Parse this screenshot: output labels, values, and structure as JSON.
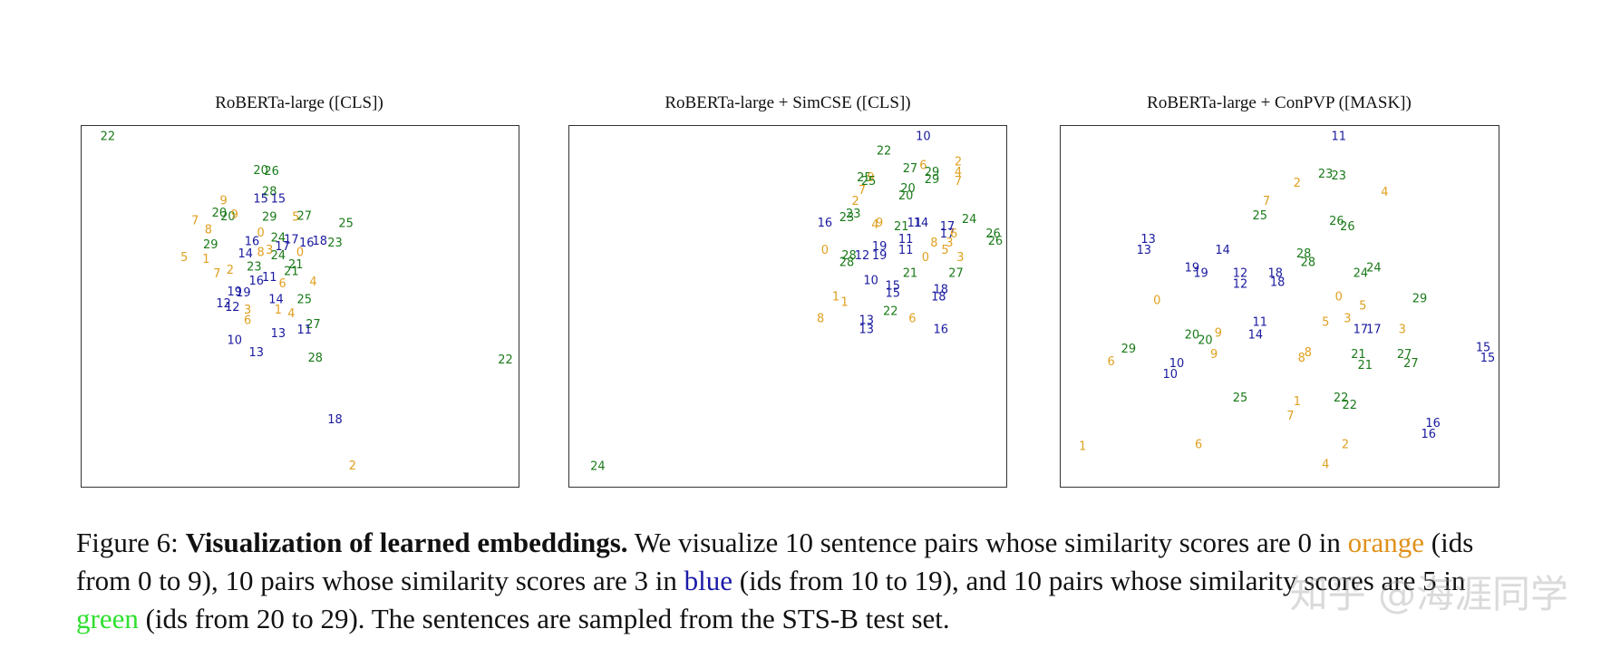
{
  "colors": {
    "orange": "#e0a020",
    "blue": "#1a1aa0",
    "green": "#1a7a1a",
    "caption_green": "#2ee02e"
  },
  "chart_data": [
    {
      "type": "scatter",
      "title": "RoBERTa-large ([CLS])",
      "xlim": [
        0,
        100
      ],
      "ylim": [
        0,
        100
      ],
      "grid": false,
      "points": [
        {
          "id": "22",
          "x": 6.0,
          "y": 97.0
        },
        {
          "id": "20",
          "x": 41.0,
          "y": 87.5
        },
        {
          "id": "26",
          "x": 43.5,
          "y": 87.3
        },
        {
          "id": "28",
          "x": 43.0,
          "y": 81.6
        },
        {
          "id": "15",
          "x": 41.0,
          "y": 79.7
        },
        {
          "id": "15",
          "x": 45.0,
          "y": 79.7
        },
        {
          "id": "9",
          "x": 32.5,
          "y": 79.2
        },
        {
          "id": "20",
          "x": 31.5,
          "y": 75.7
        },
        {
          "id": "20",
          "x": 33.5,
          "y": 74.8
        },
        {
          "id": "9",
          "x": 35.0,
          "y": 75.3
        },
        {
          "id": "7",
          "x": 26.0,
          "y": 73.6
        },
        {
          "id": "29",
          "x": 43.0,
          "y": 74.6
        },
        {
          "id": "5",
          "x": 49.0,
          "y": 74.6
        },
        {
          "id": "27",
          "x": 51.0,
          "y": 74.9
        },
        {
          "id": "25",
          "x": 60.5,
          "y": 72.9
        },
        {
          "id": "8",
          "x": 29.0,
          "y": 71.1
        },
        {
          "id": "0",
          "x": 41.0,
          "y": 70.2
        },
        {
          "id": "16",
          "x": 39.0,
          "y": 67.9
        },
        {
          "id": "24",
          "x": 45.0,
          "y": 68.9
        },
        {
          "id": "17",
          "x": 48.0,
          "y": 68.3
        },
        {
          "id": "17",
          "x": 46.0,
          "y": 66.4
        },
        {
          "id": "16",
          "x": 51.5,
          "y": 67.4
        },
        {
          "id": "18",
          "x": 54.5,
          "y": 68.0
        },
        {
          "id": "23",
          "x": 58.0,
          "y": 67.4
        },
        {
          "id": "29",
          "x": 29.5,
          "y": 67.0
        },
        {
          "id": "14",
          "x": 37.5,
          "y": 64.4
        },
        {
          "id": "8",
          "x": 41.0,
          "y": 64.8
        },
        {
          "id": "3",
          "x": 43.0,
          "y": 65.4
        },
        {
          "id": "24",
          "x": 45.0,
          "y": 63.9
        },
        {
          "id": "0",
          "x": 50.0,
          "y": 64.8
        },
        {
          "id": "5",
          "x": 23.5,
          "y": 63.5
        },
        {
          "id": "1",
          "x": 28.5,
          "y": 62.9
        },
        {
          "id": "23",
          "x": 39.5,
          "y": 60.8
        },
        {
          "id": "21",
          "x": 49.0,
          "y": 61.4
        },
        {
          "id": "21",
          "x": 48.0,
          "y": 59.5
        },
        {
          "id": "7",
          "x": 31.0,
          "y": 58.9
        },
        {
          "id": "2",
          "x": 34.0,
          "y": 59.9
        },
        {
          "id": "11",
          "x": 43.0,
          "y": 57.9
        },
        {
          "id": "16",
          "x": 40.0,
          "y": 56.9
        },
        {
          "id": "6",
          "x": 46.0,
          "y": 56.2
        },
        {
          "id": "4",
          "x": 53.0,
          "y": 56.6
        },
        {
          "id": "19",
          "x": 35.0,
          "y": 53.9
        },
        {
          "id": "19",
          "x": 37.0,
          "y": 53.7
        },
        {
          "id": "14",
          "x": 44.5,
          "y": 51.7
        },
        {
          "id": "25",
          "x": 51.0,
          "y": 51.7
        },
        {
          "id": "12",
          "x": 32.5,
          "y": 50.6
        },
        {
          "id": "12",
          "x": 34.5,
          "y": 49.6
        },
        {
          "id": "3",
          "x": 38.0,
          "y": 48.9
        },
        {
          "id": "1",
          "x": 45.0,
          "y": 48.9
        },
        {
          "id": "4",
          "x": 48.0,
          "y": 47.9
        },
        {
          "id": "6",
          "x": 38.0,
          "y": 46.0
        },
        {
          "id": "27",
          "x": 53.0,
          "y": 44.8
        },
        {
          "id": "11",
          "x": 51.0,
          "y": 43.3
        },
        {
          "id": "13",
          "x": 45.0,
          "y": 42.3
        },
        {
          "id": "10",
          "x": 35.0,
          "y": 40.4
        },
        {
          "id": "13",
          "x": 40.0,
          "y": 37.1
        },
        {
          "id": "28",
          "x": 53.5,
          "y": 35.5
        },
        {
          "id": "22",
          "x": 97.0,
          "y": 35.0
        },
        {
          "id": "18",
          "x": 58.0,
          "y": 18.5
        },
        {
          "id": "2",
          "x": 62.0,
          "y": 5.6
        }
      ]
    },
    {
      "type": "scatter",
      "title": "RoBERTa-large + SimCSE ([CLS])",
      "xlim": [
        0,
        100
      ],
      "ylim": [
        0,
        100
      ],
      "grid": false,
      "points": [
        {
          "id": "10",
          "x": 81.0,
          "y": 97.0
        },
        {
          "id": "22",
          "x": 72.0,
          "y": 93.0
        },
        {
          "id": "2",
          "x": 89.0,
          "y": 90.0
        },
        {
          "id": "27",
          "x": 78.0,
          "y": 88.0
        },
        {
          "id": "6",
          "x": 81.0,
          "y": 89.0
        },
        {
          "id": "29",
          "x": 83.0,
          "y": 87.0
        },
        {
          "id": "4",
          "x": 89.0,
          "y": 87.0
        },
        {
          "id": "7",
          "x": 89.0,
          "y": 84.5
        },
        {
          "id": "25",
          "x": 67.5,
          "y": 85.5
        },
        {
          "id": "9",
          "x": 69.0,
          "y": 85.5
        },
        {
          "id": "25",
          "x": 68.5,
          "y": 84.5
        },
        {
          "id": "29",
          "x": 83.0,
          "y": 85.0
        },
        {
          "id": "20",
          "x": 77.5,
          "y": 82.5
        },
        {
          "id": "7",
          "x": 67.0,
          "y": 82.0
        },
        {
          "id": "20",
          "x": 77.0,
          "y": 80.5
        },
        {
          "id": "2",
          "x": 65.5,
          "y": 79.0
        },
        {
          "id": "23",
          "x": 65.0,
          "y": 75.5
        },
        {
          "id": "23",
          "x": 63.5,
          "y": 74.5
        },
        {
          "id": "16",
          "x": 58.5,
          "y": 73.0
        },
        {
          "id": "4",
          "x": 70.0,
          "y": 72.5
        },
        {
          "id": "9",
          "x": 71.0,
          "y": 73.0
        },
        {
          "id": "21",
          "x": 76.0,
          "y": 72.0
        },
        {
          "id": "11",
          "x": 79.0,
          "y": 73.0
        },
        {
          "id": "14",
          "x": 80.5,
          "y": 73.0
        },
        {
          "id": "17",
          "x": 86.5,
          "y": 72.0
        },
        {
          "id": "17",
          "x": 86.5,
          "y": 70.0
        },
        {
          "id": "6",
          "x": 88.0,
          "y": 70.0
        },
        {
          "id": "24",
          "x": 91.5,
          "y": 74.0
        },
        {
          "id": "26",
          "x": 97.0,
          "y": 70.0
        },
        {
          "id": "26",
          "x": 97.5,
          "y": 68.0
        },
        {
          "id": "3",
          "x": 87.0,
          "y": 67.5
        },
        {
          "id": "11",
          "x": 77.0,
          "y": 68.5
        },
        {
          "id": "8",
          "x": 83.5,
          "y": 67.5
        },
        {
          "id": "19",
          "x": 71.0,
          "y": 66.5
        },
        {
          "id": "11",
          "x": 77.0,
          "y": 65.5
        },
        {
          "id": "5",
          "x": 86.0,
          "y": 65.5
        },
        {
          "id": "0",
          "x": 58.5,
          "y": 65.5
        },
        {
          "id": "28",
          "x": 64.0,
          "y": 64.0
        },
        {
          "id": "12",
          "x": 67.0,
          "y": 64.0
        },
        {
          "id": "19",
          "x": 71.0,
          "y": 64.0
        },
        {
          "id": "0",
          "x": 81.5,
          "y": 63.5
        },
        {
          "id": "3",
          "x": 89.5,
          "y": 63.5
        },
        {
          "id": "28",
          "x": 63.5,
          "y": 62.0
        },
        {
          "id": "21",
          "x": 78.0,
          "y": 59.0
        },
        {
          "id": "27",
          "x": 88.5,
          "y": 59.0
        },
        {
          "id": "10",
          "x": 69.0,
          "y": 57.0
        },
        {
          "id": "15",
          "x": 74.0,
          "y": 55.5
        },
        {
          "id": "15",
          "x": 74.0,
          "y": 53.5
        },
        {
          "id": "18",
          "x": 85.0,
          "y": 54.5
        },
        {
          "id": "18",
          "x": 84.5,
          "y": 52.5
        },
        {
          "id": "1",
          "x": 61.0,
          "y": 52.5
        },
        {
          "id": "1",
          "x": 63.0,
          "y": 51.0
        },
        {
          "id": "22",
          "x": 73.5,
          "y": 48.5
        },
        {
          "id": "8",
          "x": 57.5,
          "y": 46.5
        },
        {
          "id": "13",
          "x": 68.0,
          "y": 46.0
        },
        {
          "id": "6",
          "x": 78.5,
          "y": 46.5
        },
        {
          "id": "13",
          "x": 68.0,
          "y": 43.5
        },
        {
          "id": "16",
          "x": 85.0,
          "y": 43.5
        },
        {
          "id": "24",
          "x": 6.5,
          "y": 5.5
        }
      ]
    },
    {
      "type": "scatter",
      "title": "RoBERTa-large + ConPVP ([MASK])",
      "xlim": [
        0,
        100
      ],
      "ylim": [
        0,
        100
      ],
      "grid": false,
      "points": [
        {
          "id": "11",
          "x": 63.5,
          "y": 97.0
        },
        {
          "id": "23",
          "x": 60.5,
          "y": 86.5
        },
        {
          "id": "23",
          "x": 63.5,
          "y": 86.0
        },
        {
          "id": "2",
          "x": 54.0,
          "y": 84.0
        },
        {
          "id": "4",
          "x": 74.0,
          "y": 81.5
        },
        {
          "id": "7",
          "x": 47.0,
          "y": 79.0
        },
        {
          "id": "25",
          "x": 45.5,
          "y": 75.0
        },
        {
          "id": "26",
          "x": 63.0,
          "y": 73.5
        },
        {
          "id": "26",
          "x": 65.5,
          "y": 72.0
        },
        {
          "id": "13",
          "x": 20.0,
          "y": 68.5
        },
        {
          "id": "13",
          "x": 19.0,
          "y": 65.5
        },
        {
          "id": "14",
          "x": 37.0,
          "y": 65.5
        },
        {
          "id": "28",
          "x": 55.5,
          "y": 64.5
        },
        {
          "id": "28",
          "x": 56.5,
          "y": 62.0
        },
        {
          "id": "19",
          "x": 30.0,
          "y": 60.5
        },
        {
          "id": "19",
          "x": 32.0,
          "y": 59.0
        },
        {
          "id": "12",
          "x": 41.0,
          "y": 59.0
        },
        {
          "id": "12",
          "x": 41.0,
          "y": 56.0
        },
        {
          "id": "18",
          "x": 49.0,
          "y": 59.0
        },
        {
          "id": "18",
          "x": 49.5,
          "y": 56.5
        },
        {
          "id": "24",
          "x": 68.5,
          "y": 59.0
        },
        {
          "id": "24",
          "x": 71.5,
          "y": 60.5
        },
        {
          "id": "0",
          "x": 22.0,
          "y": 51.5
        },
        {
          "id": "0",
          "x": 63.5,
          "y": 52.5
        },
        {
          "id": "5",
          "x": 69.0,
          "y": 50.0
        },
        {
          "id": "29",
          "x": 82.0,
          "y": 52.0
        },
        {
          "id": "11",
          "x": 45.5,
          "y": 45.5
        },
        {
          "id": "5",
          "x": 60.5,
          "y": 45.5
        },
        {
          "id": "3",
          "x": 65.5,
          "y": 46.5
        },
        {
          "id": "17",
          "x": 68.5,
          "y": 43.5
        },
        {
          "id": "17",
          "x": 71.5,
          "y": 43.5
        },
        {
          "id": "3",
          "x": 78.0,
          "y": 43.5
        },
        {
          "id": "14",
          "x": 44.5,
          "y": 42.0
        },
        {
          "id": "20",
          "x": 30.0,
          "y": 42.0
        },
        {
          "id": "9",
          "x": 36.0,
          "y": 42.5
        },
        {
          "id": "20",
          "x": 33.0,
          "y": 40.5
        },
        {
          "id": "29",
          "x": 15.5,
          "y": 38.0
        },
        {
          "id": "9",
          "x": 35.0,
          "y": 36.5
        },
        {
          "id": "8",
          "x": 55.0,
          "y": 35.5
        },
        {
          "id": "8",
          "x": 56.5,
          "y": 37.0
        },
        {
          "id": "21",
          "x": 68.0,
          "y": 36.5
        },
        {
          "id": "21",
          "x": 69.5,
          "y": 33.5
        },
        {
          "id": "27",
          "x": 78.5,
          "y": 36.5
        },
        {
          "id": "27",
          "x": 80.0,
          "y": 34.0
        },
        {
          "id": "15",
          "x": 96.5,
          "y": 38.5
        },
        {
          "id": "15",
          "x": 97.5,
          "y": 35.5
        },
        {
          "id": "6",
          "x": 11.5,
          "y": 34.5
        },
        {
          "id": "10",
          "x": 26.5,
          "y": 34.0
        },
        {
          "id": "10",
          "x": 25.0,
          "y": 31.0
        },
        {
          "id": "25",
          "x": 41.0,
          "y": 24.5
        },
        {
          "id": "1",
          "x": 54.0,
          "y": 23.5
        },
        {
          "id": "22",
          "x": 64.0,
          "y": 24.5
        },
        {
          "id": "22",
          "x": 66.0,
          "y": 22.5
        },
        {
          "id": "7",
          "x": 52.5,
          "y": 19.5
        },
        {
          "id": "16",
          "x": 85.0,
          "y": 17.5
        },
        {
          "id": "16",
          "x": 84.0,
          "y": 14.5
        },
        {
          "id": "1",
          "x": 5.0,
          "y": 11.0
        },
        {
          "id": "6",
          "x": 31.5,
          "y": 11.5
        },
        {
          "id": "2",
          "x": 65.0,
          "y": 11.5
        },
        {
          "id": "4",
          "x": 60.5,
          "y": 6.0
        }
      ]
    }
  ],
  "caption": {
    "label": "Figure 6:",
    "bold": "Visualization of learned embeddings.",
    "part1": "We visualize 10 sentence pairs whose similarity scores are 0 in",
    "orange_word": "orange",
    "part2": "(ids from 0 to 9), 10 pairs whose similarity scores are 3 in",
    "blue_word": "blue",
    "part3": "(ids from 10 to 19), and 10 pairs whose similarity scores are 5 in",
    "green_word": "green",
    "part4": "(ids from 20 to 29). The sentences are sampled from the STS-B test set."
  },
  "watermark": "知乎 @海涯同学"
}
